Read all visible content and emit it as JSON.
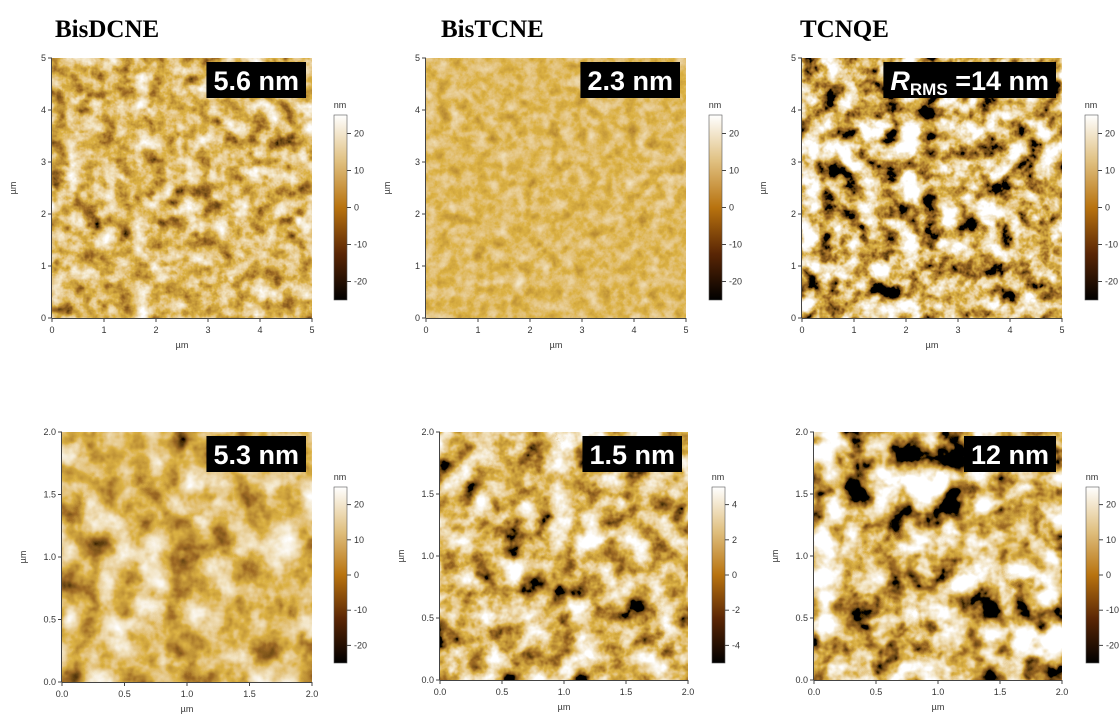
{
  "headers": [
    "BisDCNE",
    "BisTCNE",
    "TCNQE"
  ],
  "panels": [
    {
      "label": "5.6 nm",
      "xlabel": "µm",
      "ylabel": "µm",
      "xticks": [
        "0",
        "1",
        "2",
        "3",
        "4",
        "5"
      ],
      "yticks": [
        "0",
        "1",
        "2",
        "3",
        "4",
        "5"
      ],
      "colorbar": {
        "unit": "nm",
        "ticks": [
          "20",
          "10",
          "0",
          "-10",
          "-20"
        ]
      }
    },
    {
      "label": "2.3 nm",
      "xlabel": "µm",
      "ylabel": "µm",
      "xticks": [
        "0",
        "1",
        "2",
        "3",
        "4",
        "5"
      ],
      "yticks": [
        "0",
        "1",
        "2",
        "3",
        "4",
        "5"
      ],
      "colorbar": {
        "unit": "nm",
        "ticks": [
          "20",
          "10",
          "0",
          "-10",
          "-20"
        ]
      }
    },
    {
      "label_symbol": "R",
      "label_subscript": "RMS",
      "label": " =14 nm",
      "xlabel": "µm",
      "ylabel": "µm",
      "xticks": [
        "0",
        "1",
        "2",
        "3",
        "4",
        "5"
      ],
      "yticks": [
        "0",
        "1",
        "2",
        "3",
        "4",
        "5"
      ],
      "colorbar": {
        "unit": "nm",
        "ticks": [
          "20",
          "10",
          "0",
          "-10",
          "-20"
        ]
      }
    },
    {
      "label": "5.3 nm",
      "xlabel": "µm",
      "ylabel": "µm",
      "xticks": [
        "0.0",
        "0.5",
        "1.0",
        "1.5",
        "2.0"
      ],
      "yticks": [
        "0.0",
        "0.5",
        "1.0",
        "1.5",
        "2.0"
      ],
      "colorbar": {
        "unit": "nm",
        "ticks": [
          "20",
          "10",
          "0",
          "-10",
          "-20"
        ]
      }
    },
    {
      "label": "1.5 nm",
      "xlabel": "µm",
      "ylabel": "µm",
      "xticks": [
        "0.0",
        "0.5",
        "1.0",
        "1.5",
        "2.0"
      ],
      "yticks": [
        "0.0",
        "0.5",
        "1.0",
        "1.5",
        "2.0"
      ],
      "colorbar": {
        "unit": "nm",
        "ticks": [
          "4",
          "2",
          "0",
          "-2",
          "-4"
        ]
      }
    },
    {
      "label": "12 nm",
      "xlabel": "µm",
      "ylabel": "µm",
      "xticks": [
        "0.0",
        "0.5",
        "1.0",
        "1.5",
        "2.0"
      ],
      "yticks": [
        "0.0",
        "0.5",
        "1.0",
        "1.5",
        "2.0"
      ],
      "colorbar": {
        "unit": "nm",
        "ticks": [
          "20",
          "10",
          "0",
          "-10",
          "-20"
        ]
      }
    }
  ]
}
